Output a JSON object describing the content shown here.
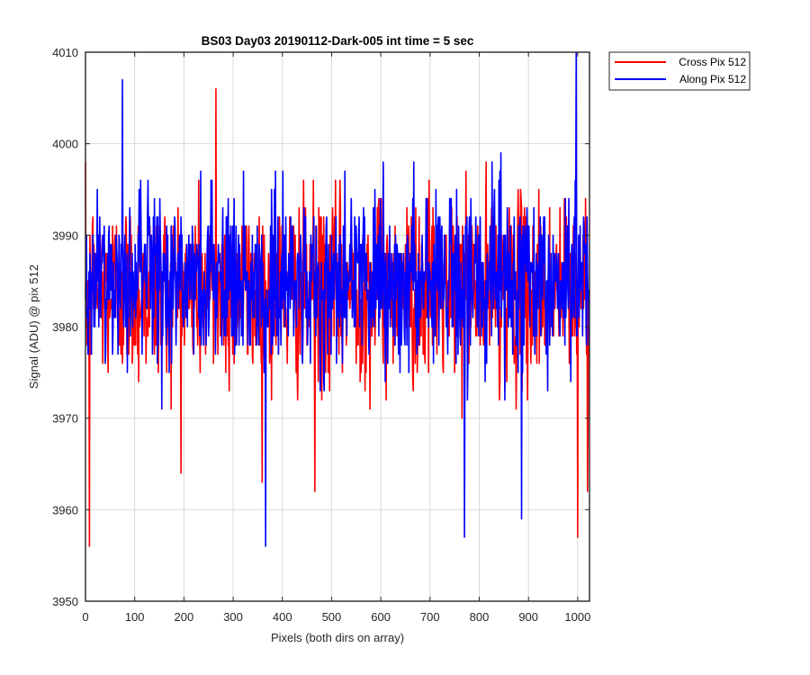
{
  "chart_data": {
    "type": "line",
    "title": "BS03 Day03 20190112-Dark-005 int time = 5 sec",
    "xlabel": "Pixels (both dirs on array)",
    "ylabel": "Signal (ADU) @ pix 512",
    "xlim": [
      0,
      1024
    ],
    "ylim": [
      3950,
      4010
    ],
    "xticks": [
      0,
      100,
      200,
      300,
      400,
      500,
      600,
      700,
      800,
      900,
      1000
    ],
    "yticks": [
      3950,
      3960,
      3970,
      3980,
      3990,
      4000,
      4010
    ],
    "grid": true,
    "legend_position": "outside top-right",
    "series": [
      {
        "name": "Cross Pix 512",
        "color": "#ff0000",
        "mean": 3984,
        "spread": 13,
        "n_points": 1024,
        "extremes": [
          {
            "x": 8,
            "y": 3956
          },
          {
            "x": 265,
            "y": 4006
          },
          {
            "x": 466,
            "y": 3962
          },
          {
            "x": 1000,
            "y": 3957
          },
          {
            "x": 1020,
            "y": 3962
          }
        ]
      },
      {
        "name": "Along Pix 512",
        "color": "#0000ff",
        "mean": 3985,
        "spread": 12,
        "n_points": 1024,
        "extremes": [
          {
            "x": 366,
            "y": 3956
          },
          {
            "x": 770,
            "y": 3957
          },
          {
            "x": 886,
            "y": 3959
          },
          {
            "x": 997,
            "y": 4010
          },
          {
            "x": 75,
            "y": 4007
          }
        ]
      }
    ]
  }
}
